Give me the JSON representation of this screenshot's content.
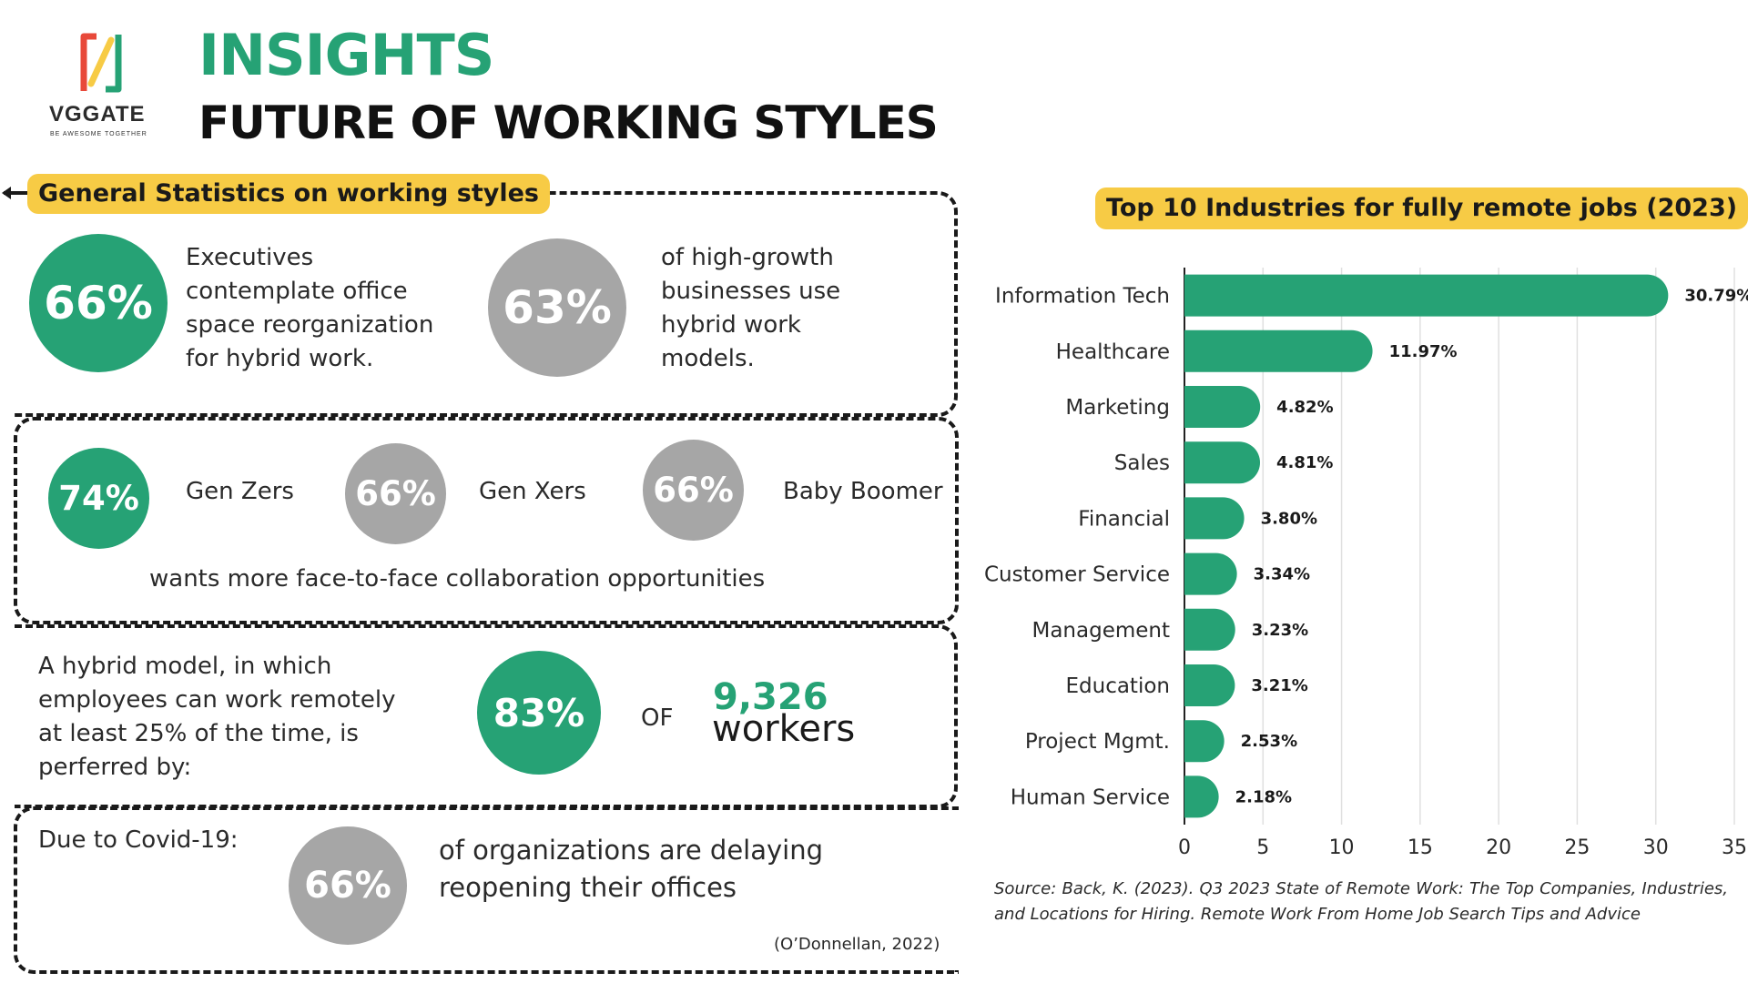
{
  "logo": {
    "name": "VGGATE",
    "tagline": "BE AWESOME TOGETHER",
    "colors": [
      "#26a275",
      "#f7cb45",
      "#e8493a"
    ]
  },
  "header": {
    "title": "INSIGHTS",
    "subtitle": "FUTURE OF WORKING STYLES"
  },
  "general": {
    "label": "General Statistics on working styles"
  },
  "stat1": {
    "value": "66%",
    "text": [
      "Executives",
      "contemplate office",
      "space reorganization",
      "for hybrid work."
    ]
  },
  "stat2": {
    "value": "63%",
    "text": [
      "of high-growth",
      "businesses use",
      "hybrid work",
      "models."
    ]
  },
  "generations": {
    "items": [
      {
        "value": "74%",
        "label": "Gen Zers"
      },
      {
        "value": "66%",
        "label": "Gen Xers"
      },
      {
        "value": "66%",
        "label": "Baby Boomer"
      }
    ],
    "caption": "wants more face-to-face collaboration opportunities"
  },
  "hybrid": {
    "text": [
      "A hybrid model, in which",
      "employees can work remotely",
      "at least 25% of the time, is",
      "perferred by:"
    ],
    "value": "83%",
    "of": "OF",
    "count": "9,326",
    "unit": "workers"
  },
  "covid": {
    "label": "Due to Covid-19:",
    "value": "66%",
    "text": [
      "of organizations are delaying",
      "reopening their offices"
    ],
    "citation": "(O’Donnellan, 2022)"
  },
  "colors": {
    "green": "#26a275",
    "grey": "#a6a6a6",
    "yellow": "#f7cb45"
  },
  "chart_data": {
    "type": "bar",
    "orientation": "horizontal",
    "title": "Top 10 Industries for fully remote jobs (2023)",
    "categories": [
      "Information Tech",
      "Healthcare",
      "Marketing",
      "Sales",
      "Financial",
      "Customer Service",
      "Management",
      "Education",
      "Project Mgmt.",
      "Human Service"
    ],
    "values": [
      30.79,
      11.97,
      4.82,
      4.81,
      3.8,
      3.34,
      3.23,
      3.21,
      2.53,
      2.18
    ],
    "value_labels": [
      "30.79%",
      "11.97%",
      "4.82%",
      "4.81%",
      "3.80%",
      "3.34%",
      "3.23%",
      "3.21%",
      "2.53%",
      "2.18%"
    ],
    "xlim": [
      0,
      35
    ],
    "xticks": [
      0,
      5,
      10,
      15,
      20,
      25,
      30,
      35
    ],
    "grid": true,
    "bar_color": "#26a275"
  },
  "source": "Source: Back, K. (2023). Q3 2023 State of Remote Work: The Top Companies, Industries, and Locations for Hiring. Remote Work From Home Job Search Tips and Advice"
}
